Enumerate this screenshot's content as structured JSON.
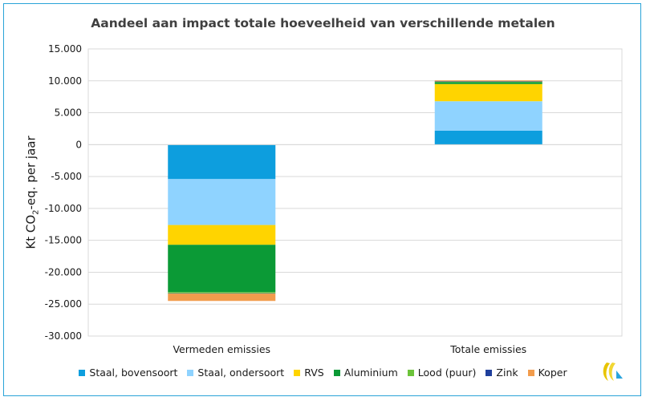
{
  "chart_data": {
    "type": "bar",
    "stacked": true,
    "title": "Aandeel aan impact totale hoeveelheid van verschillende metalen",
    "ylabel_main": "Kt CO",
    "ylabel_sub": "2",
    "ylabel_rest": "-eq. per jaar",
    "categories": [
      "Vermeden emissies",
      "Totale emissies"
    ],
    "ylim": [
      -30000,
      15000
    ],
    "yticks": [
      15000,
      10000,
      5000,
      0,
      -5000,
      -10000,
      -15000,
      -20000,
      -25000,
      -30000
    ],
    "ytick_labels": [
      "15.000",
      "10.000",
      "5.000",
      "0",
      "-5.000",
      "-10.000",
      "-15.000",
      "-20.000",
      "-25.000",
      "-30.000"
    ],
    "grid": true,
    "legend_position": "bottom",
    "series": [
      {
        "name": "Staal, bovensoort",
        "color": "#0d9ede",
        "values": [
          -5400,
          2200
        ]
      },
      {
        "name": "Staal, ondersoort",
        "color": "#8fd3ff",
        "values": [
          -7200,
          4600
        ]
      },
      {
        "name": "RVS",
        "color": "#ffd400",
        "values": [
          -3100,
          2700
        ]
      },
      {
        "name": "Aluminium",
        "color": "#0b9a36",
        "values": [
          -7400,
          300
        ]
      },
      {
        "name": "Lood (puur)",
        "color": "#6cc33a",
        "values": [
          -200,
          100
        ]
      },
      {
        "name": "Zink",
        "color": "#1f3f9c",
        "values": [
          -50,
          20
        ]
      },
      {
        "name": "Koper",
        "color": "#f29c4c",
        "values": [
          -1150,
          150
        ]
      }
    ]
  }
}
